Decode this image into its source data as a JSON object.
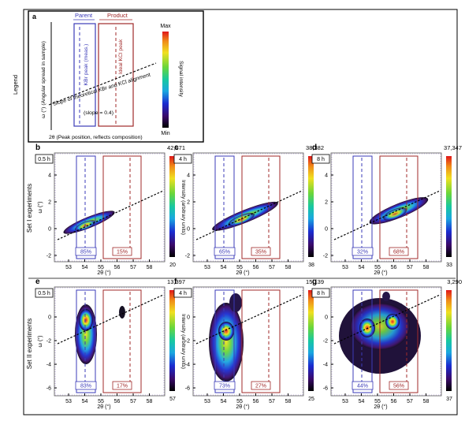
{
  "legend": {
    "panel_label": "a",
    "side_label": "Legend",
    "parent_label": "Parent",
    "product_label": "Product",
    "kbr_peak": "KBr peak (meas.)",
    "kcl_peak": "Ideal KCl peak",
    "ylabel": "ω (°) (Angular spread in sample)",
    "xlabel": "2θ (Peak position, reflects composition)",
    "slope_line1": "Slope of theoretical KBr and KCl alignment",
    "slope_line2": "(slope = 0.4)",
    "colorbar_label": "Signal intensity",
    "colorbar_max": "Max",
    "colorbar_min": "Min"
  },
  "row_labels": {
    "set1": "Set I experiments",
    "set2": "Set II experiments"
  },
  "axis": {
    "xlabel": "2θ (°)",
    "ylabel": "ω (°)",
    "colorbar_label": "Intensity (arbitrary units)",
    "x_ticks": [
      "53",
      "54",
      "55",
      "56",
      "57",
      "58"
    ],
    "y_ticks_set1": [
      "4",
      "2",
      "0",
      "-2"
    ],
    "y_ticks_set2": [
      "0",
      "-2",
      "-4",
      "-6"
    ]
  },
  "panels": [
    {
      "id": "b",
      "time": "0.5 h",
      "cmax": "42,871",
      "cmin": "20",
      "parent_pct": "85%",
      "product_pct": "15%"
    },
    {
      "id": "c",
      "time": "4 h",
      "cmax": "38,382",
      "cmin": "38",
      "parent_pct": "65%",
      "product_pct": "35%"
    },
    {
      "id": "d",
      "time": "8 h",
      "cmax": "37,347",
      "cmin": "33",
      "parent_pct": "32%",
      "product_pct": "68%"
    },
    {
      "id": "e",
      "time": "0.5 h",
      "cmax": "13,397",
      "cmin": "57",
      "parent_pct": "83%",
      "product_pct": "17%"
    },
    {
      "id": "f",
      "time": "4 h",
      "cmax": "15,139",
      "cmin": "25",
      "parent_pct": "73%",
      "product_pct": "27%"
    },
    {
      "id": "g",
      "time": "8 h",
      "cmax": "3,290",
      "cmin": "37",
      "parent_pct": "44%",
      "product_pct": "56%"
    }
  ],
  "colors": {
    "parent": "#3b3bb8",
    "product": "#a02a2a"
  },
  "icons": [
    "colorbar-icon",
    "intensity-map-icon"
  ]
}
